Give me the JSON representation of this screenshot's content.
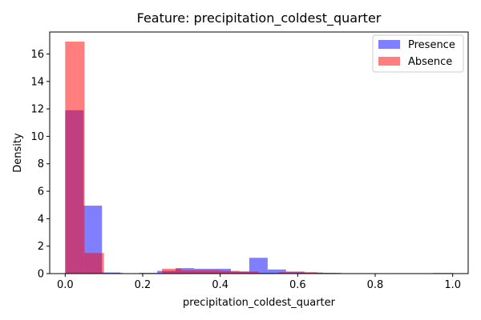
{
  "chart_data": {
    "type": "bar",
    "title": "Feature: precipitation_coldest_quarter",
    "xlabel": "precipitation_coldest_quarter",
    "ylabel": "Density",
    "xlim": [
      -0.04,
      1.04
    ],
    "ylim": [
      0,
      17.6
    ],
    "xticks": [
      0.0,
      0.2,
      0.4,
      0.6,
      0.8,
      1.0
    ],
    "xtick_labels": [
      "0.0",
      "0.2",
      "0.4",
      "0.6",
      "0.8",
      "1.0"
    ],
    "yticks": [
      0,
      2,
      4,
      6,
      8,
      10,
      12,
      14,
      16
    ],
    "ytick_labels": [
      "0",
      "2",
      "4",
      "6",
      "8",
      "10",
      "12",
      "14",
      "16"
    ],
    "grid": false,
    "legend_position": "top-right",
    "series": [
      {
        "name": "Presence",
        "color": "#0000ff",
        "alpha": 0.5,
        "bin_edges": [
          0.0,
          0.0475,
          0.095,
          0.1425,
          0.19,
          0.2375,
          0.285,
          0.3325,
          0.38,
          0.4275,
          0.475,
          0.5225,
          0.57,
          0.6175,
          0.665,
          0.7125,
          0.76,
          0.8075,
          0.855,
          0.9025
        ],
        "values": [
          11.9,
          4.95,
          0.08,
          0.0,
          0.05,
          0.2,
          0.4,
          0.35,
          0.35,
          0.15,
          1.15,
          0.3,
          0.15,
          0.08,
          0.05,
          0.03,
          0.03,
          0.02,
          0.0
        ]
      },
      {
        "name": "Absence",
        "color": "#ff0000",
        "alpha": 0.5,
        "bin_edges": [
          0.0,
          0.05,
          0.1,
          0.15,
          0.2,
          0.25,
          0.3,
          0.35,
          0.4,
          0.45,
          0.5,
          0.55,
          0.6,
          0.65,
          0.7,
          0.75,
          0.8,
          0.85,
          0.9,
          0.95,
          1.0
        ],
        "values": [
          16.9,
          1.5,
          0.05,
          0.02,
          0.0,
          0.35,
          0.25,
          0.25,
          0.2,
          0.15,
          0.05,
          0.1,
          0.1,
          0.05,
          0.03,
          0.02,
          0.02,
          0.0,
          0.0,
          0.05
        ]
      }
    ]
  }
}
